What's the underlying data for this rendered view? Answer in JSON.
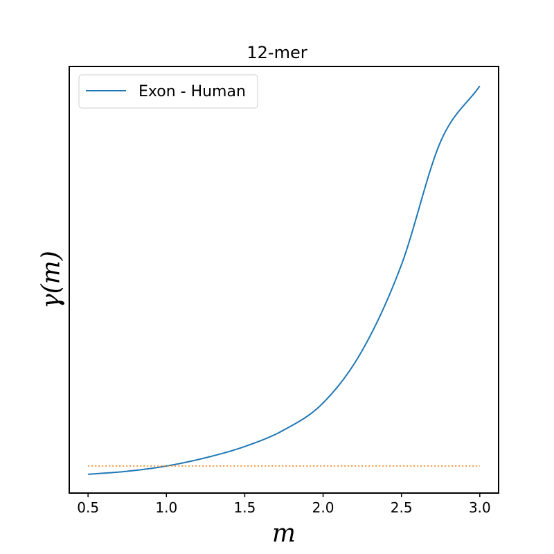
{
  "chart_data": {
    "type": "line",
    "title": "12-mer",
    "xlabel": "m",
    "ylabel": "γ(m)",
    "xlim": [
      0.38,
      3.12
    ],
    "x_ticks": [
      "0.5",
      "1.0",
      "1.5",
      "2.0",
      "2.5",
      "3.0"
    ],
    "y_ticks_shown": false,
    "ylim": [
      0.6,
      29
    ],
    "grid": false,
    "legend_placement": "top-left",
    "series": [
      {
        "name": "Exon - Human",
        "color": "#1f77b4",
        "style": "solid",
        "x": [
          0.5,
          0.75,
          1.0,
          1.25,
          1.5,
          1.75,
          2.0,
          2.25,
          2.5,
          2.75,
          3.0
        ],
        "y": [
          1.85,
          2.05,
          2.4,
          2.95,
          3.7,
          4.8,
          6.6,
          10.1,
          15.8,
          24.0,
          27.7
        ]
      },
      {
        "color": "#ff7f0e",
        "style": "dotted",
        "x": [
          0.5,
          3.0
        ],
        "y": [
          2.4,
          2.4
        ]
      }
    ]
  }
}
